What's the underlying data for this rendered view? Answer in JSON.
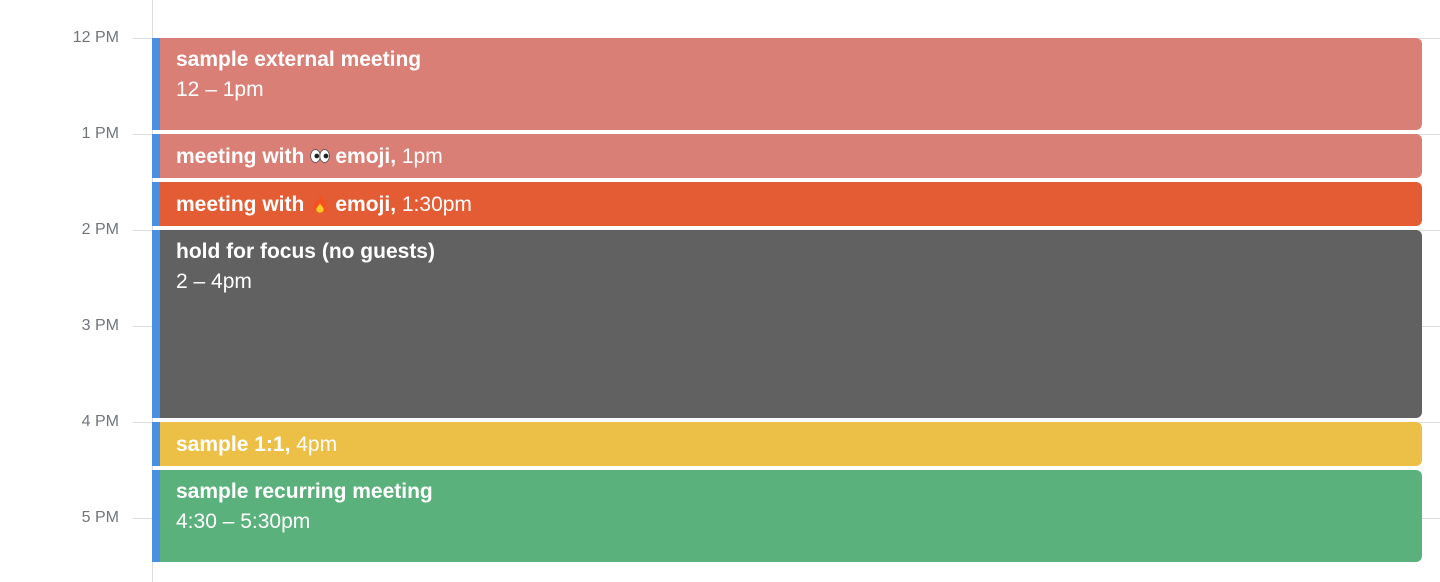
{
  "timeline": {
    "hours": [
      {
        "label": "12 PM"
      },
      {
        "label": "1 PM"
      },
      {
        "label": "2 PM"
      },
      {
        "label": "3 PM"
      },
      {
        "label": "4 PM"
      },
      {
        "label": "5 PM"
      }
    ]
  },
  "colors": {
    "salmon": "#d97f76",
    "orange": "#e35c34",
    "graphite": "#616161",
    "yellow": "#ecbf47",
    "green": "#5bb17c",
    "accent_bar": "#4a90e2"
  },
  "events": [
    {
      "title": "sample external meeting",
      "time": "12 – 1pm",
      "color": "#d97f76"
    },
    {
      "title_before": "meeting with",
      "emoji": "eyes-emoji",
      "title_after": "emoji",
      "time": "1pm",
      "color": "#d97f76"
    },
    {
      "title_before": "meeting with",
      "emoji": "fire-emoji",
      "title_after": "emoji",
      "time": "1:30pm",
      "color": "#e35c34"
    },
    {
      "title": "hold for focus (no guests)",
      "time": "2 – 4pm",
      "color": "#616161"
    },
    {
      "title": "sample 1:1",
      "time": "4pm",
      "color": "#ecbf47"
    },
    {
      "title": "sample recurring meeting",
      "time": "4:30 – 5:30pm",
      "color": "#5bb17c"
    }
  ]
}
